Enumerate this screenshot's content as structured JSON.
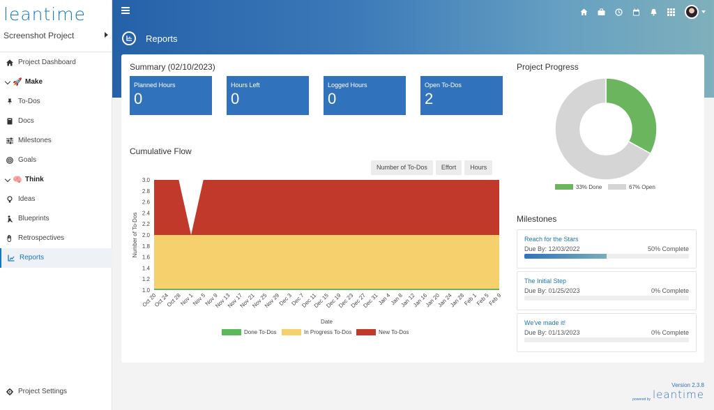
{
  "brand": {
    "logo_text": "leantime"
  },
  "sidebar": {
    "project_name": "Screenshot Project",
    "items": [
      {
        "label": "Project Dashboard",
        "icon": "home-icon"
      },
      {
        "label": "Make",
        "icon": "rocket-icon",
        "group": true
      },
      {
        "label": "To-Dos",
        "icon": "pin-icon"
      },
      {
        "label": "Docs",
        "icon": "book-icon"
      },
      {
        "label": "Milestones",
        "icon": "sliders-icon"
      },
      {
        "label": "Goals",
        "icon": "target-icon"
      },
      {
        "label": "Think",
        "icon": "brain-icon",
        "group": true
      },
      {
        "label": "Ideas",
        "icon": "lightbulb-icon"
      },
      {
        "label": "Blueprints",
        "icon": "person-icon"
      },
      {
        "label": "Retrospectives",
        "icon": "hand-icon"
      },
      {
        "label": "Reports",
        "icon": "chart-icon",
        "active": true
      }
    ],
    "settings_label": "Project Settings"
  },
  "header": {
    "page_title": "Reports",
    "icons": [
      "home-icon",
      "briefcase-icon",
      "clock-icon",
      "calendar-icon",
      "bell-icon",
      "apps-grid-icon"
    ]
  },
  "summary": {
    "title": "Summary (02/10/2023)",
    "tiles": [
      {
        "label": "Planned Hours",
        "value": "0"
      },
      {
        "label": "Hours Left",
        "value": "0"
      },
      {
        "label": "Logged Hours",
        "value": "0"
      },
      {
        "label": "Open To-Dos",
        "value": "2"
      }
    ]
  },
  "cumulative_flow": {
    "title": "Cumulative Flow",
    "toggles": [
      "Number of To-Dos",
      "Effort",
      "Hours"
    ]
  },
  "chart_data": [
    {
      "type": "area",
      "title": "",
      "xlabel": "Date",
      "ylabel": "Number of To-Dos",
      "ylim": [
        1.0,
        3.0
      ],
      "yticks": [
        "1.0",
        "1.2",
        "1.4",
        "1.6",
        "1.8",
        "2.0",
        "2.2",
        "2.4",
        "2.6",
        "2.8",
        "3.0"
      ],
      "categories": [
        "Oct 20",
        "Oct 24",
        "Oct 28",
        "Nov 1",
        "Nov 5",
        "Nov 9",
        "Nov 13",
        "Nov 17",
        "Nov 21",
        "Nov 25",
        "Nov 29",
        "Dec 3",
        "Dec 7",
        "Dec 11",
        "Dec 15",
        "Dec 19",
        "Dec 23",
        "Dec 27",
        "Dec 31",
        "Jan 4",
        "Jan 8",
        "Jan 12",
        "Jan 16",
        "Jan 20",
        "Jan 24",
        "Jan 28",
        "Feb 1",
        "Feb 5",
        "Feb 9"
      ],
      "stacked": true,
      "grid": false,
      "legend": "bottom",
      "series": [
        {
          "name": "Done To-Dos",
          "color": "#5cb85c",
          "values": [
            1,
            1,
            1,
            1,
            1,
            1,
            1,
            1,
            1,
            1,
            1,
            1,
            1,
            1,
            1,
            1,
            1,
            1,
            1,
            1,
            1,
            1,
            1,
            1,
            1,
            1,
            1,
            1,
            1
          ]
        },
        {
          "name": "In Progress To-Dos",
          "color": "#f7d06e",
          "values": [
            2,
            2,
            2,
            2,
            2,
            2,
            2,
            2,
            2,
            2,
            2,
            2,
            2,
            2,
            2,
            2,
            2,
            2,
            2,
            2,
            2,
            2,
            2,
            2,
            2,
            2,
            2,
            2,
            2
          ]
        },
        {
          "name": "New To-Dos",
          "color": "#c0392b",
          "values": [
            3,
            3,
            3,
            2,
            3,
            3,
            3,
            3,
            3,
            3,
            3,
            3,
            3,
            3,
            3,
            3,
            3,
            3,
            3,
            3,
            3,
            3,
            3,
            3,
            3,
            3,
            3,
            3,
            3
          ]
        }
      ]
    },
    {
      "type": "pie",
      "title": "",
      "donut": true,
      "legend": "bottom",
      "categories": [
        "33% Done",
        "67% Open"
      ],
      "values": [
        33,
        67
      ],
      "colors": [
        "#6ab55e",
        "#d5d5d5"
      ]
    }
  ],
  "project_progress": {
    "title": "Project Progress"
  },
  "milestones": {
    "title": "Milestones",
    "items": [
      {
        "title": "Reach for the Stars",
        "due": "Due By: 12/03/2022",
        "complete": "50% Complete",
        "progress": 50
      },
      {
        "title": "The Initial Step",
        "due": "Due By: 01/25/2023",
        "complete": "0% Complete",
        "progress": 0
      },
      {
        "title": "We've made it!",
        "due": "Due By: 01/13/2023",
        "complete": "0% Complete",
        "progress": 0
      }
    ]
  },
  "footer": {
    "version": "Version 2.3.8",
    "powered_by": "powered by",
    "logo_text": "leantime"
  }
}
